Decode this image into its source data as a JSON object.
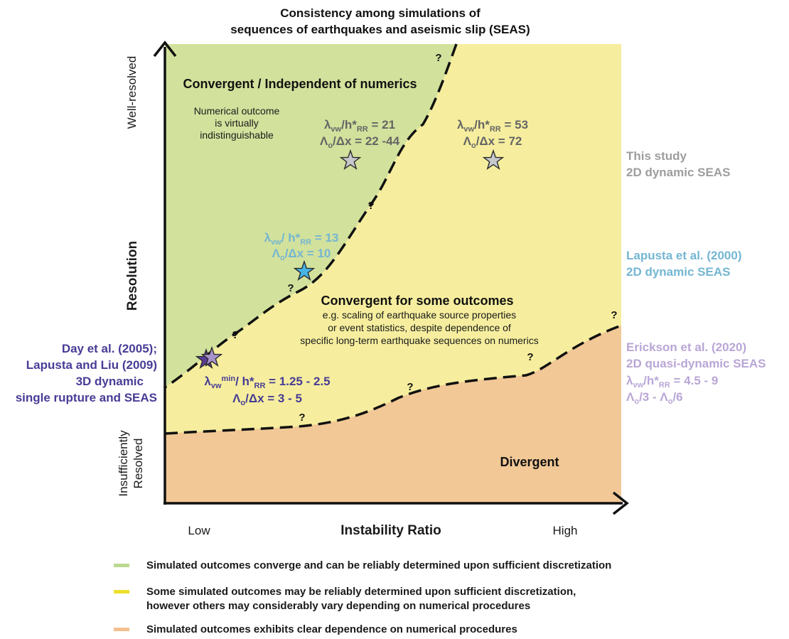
{
  "title": {
    "line1": "Consistency among simulations of",
    "line2": "sequences of earthquakes and aseismic slip (SEAS)"
  },
  "axes": {
    "y_label": "Resolution",
    "y_high": "Well-resolved",
    "y_low_line1": "Insufficiently",
    "y_low_line2": "Resolved",
    "x_label": "Instability Ratio",
    "x_low": "Low",
    "x_high": "High"
  },
  "regions": {
    "convergent_title": "Convergent / Independent of numerics",
    "convergent_note": [
      "Numerical outcome",
      "is virtually",
      "indistinguishable"
    ],
    "some_title": "Convergent for some outcomes",
    "some_note": [
      "e.g. scaling of earthquake source properties",
      "or event statistics, despite dependence of",
      "specific long-term earthquake sequences on numerics"
    ],
    "divergent_title": "Divergent",
    "question_mark": "?"
  },
  "points": {
    "this_study_1": {
      "ratio_base": "λ",
      "ratio_sub": "vw",
      "ratio_mid": "/h*",
      "ratio_sub2": "RR",
      "ratio_val": " = 21",
      "res_base": "Λ",
      "res_sub": "o",
      "res_val": "/Δx = 22 -44"
    },
    "this_study_2": {
      "ratio_base": "λ",
      "ratio_sub": "vw",
      "ratio_mid": "/h*",
      "ratio_sub2": "RR",
      "ratio_val": " = 53",
      "res_base": "Λ",
      "res_sub": "o",
      "res_val": "/Δx = 72"
    },
    "lapusta_2000": {
      "ratio_base": "λ",
      "ratio_sub": "vw",
      "ratio_mid": "/ h*",
      "ratio_sub2": "RR",
      "ratio_val": " = 13",
      "res_base": "Λ",
      "res_sub": "o",
      "res_val": "/Δx = 10"
    },
    "day_2005": {
      "ratio_base": "λ",
      "ratio_sub": "vw",
      "ratio_sup": "min",
      "ratio_mid": "/ h*",
      "ratio_sub2": "RR",
      "ratio_val": " = 1.25 - 2.5",
      "res_base": "Λ",
      "res_sub": "o",
      "res_val": "/Δx = 3 - 5"
    }
  },
  "studies": {
    "this_study": [
      "This study",
      "2D dynamic SEAS"
    ],
    "lapusta_2000": [
      "Lapusta et al. (2000)",
      "2D dynamic SEAS"
    ],
    "erickson_2020": {
      "lines": [
        "Erickson et al. (2020)",
        "2D quasi-dynamic SEAS"
      ],
      "ratio": {
        "base": "λ",
        "sub": "vw",
        "mid": "/h*",
        "sub2": "RR",
        "val": " = 4.5 - 9"
      },
      "res": {
        "a": "Λ",
        "a_sub": "o",
        "b": "/3 - ",
        "c": "Λ",
        "c_sub": "o",
        "d": "/6"
      }
    },
    "day_lapusta": [
      "Day et al. (2005);",
      "Lapusta and Liu (2009)",
      "3D dynamic",
      "single rupture and SEAS"
    ]
  },
  "legend": [
    {
      "color": "#bcd88f",
      "lines": [
        "Simulated outcomes converge and can be reliably determined upon sufficient discretization"
      ]
    },
    {
      "color": "#ede02a",
      "lines": [
        "Some simulated outcomes may be reliably determined upon sufficient discretization,",
        "however others may considerably vary depending on numerical procedures"
      ]
    },
    {
      "color": "#f3c08f",
      "lines": [
        "Simulated outcomes exhibits clear dependence on numerical procedures"
      ]
    }
  ],
  "colors": {
    "green_region": "#d2e19c",
    "yellow_region": "#f6ee9e",
    "orange_region": "#f1c896",
    "this_study": "#9d9d9d",
    "lapusta_2000": "#74b6d2",
    "erickson_2020": "#b9a6d6",
    "day_lapusta": "#473c96",
    "star_grey": "#c6c8cc",
    "star_blue": "#46b4e5",
    "star_dark_purple": "#5c3d95",
    "star_light_purple": "#a993cc"
  }
}
